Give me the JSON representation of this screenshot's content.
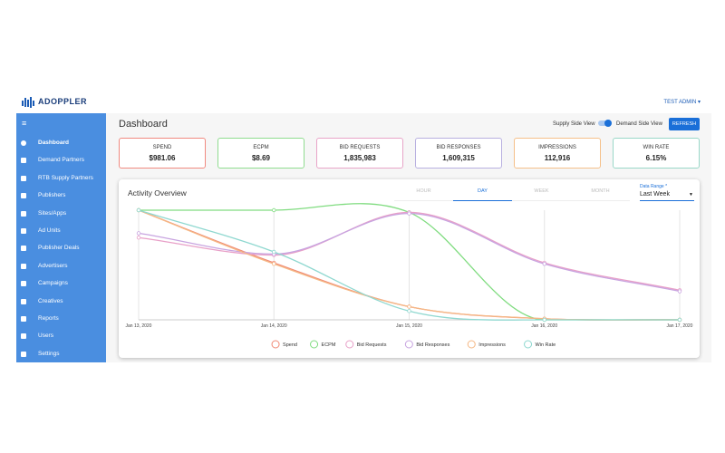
{
  "header": {
    "logo": "ADOPPLER",
    "user": "TEST ADMIN"
  },
  "sidebar": {
    "active": 0,
    "items": [
      "Dashboard",
      "Demand Partners",
      "RTB Supply Partners",
      "Publishers",
      "Sites/Apps",
      "Ad Units",
      "Publisher Deals",
      "Advertisers",
      "Campaigns",
      "Creatives",
      "Reports",
      "Users",
      "Settings"
    ]
  },
  "main": {
    "title": "Dashboard",
    "toggle_left": "Supply Side View",
    "toggle_right": "Demand Side View",
    "button": "REFRESH"
  },
  "kpis": [
    {
      "label": "SPEND",
      "value": "$981.06",
      "color": "#f08a80"
    },
    {
      "label": "ECPM",
      "value": "$8.69",
      "color": "#8fdc8f"
    },
    {
      "label": "BID REQUESTS",
      "value": "1,835,983",
      "color": "#e8a4c8"
    },
    {
      "label": "BID RESPONSES",
      "value": "1,609,315",
      "color": "#b8b0e0"
    },
    {
      "label": "IMPRESSIONS",
      "value": "112,916",
      "color": "#f5c08a"
    },
    {
      "label": "WIN RATE",
      "value": "6.15%",
      "color": "#9ad8c8"
    }
  ],
  "chart_card": {
    "title": "Activity Overview",
    "tabs": [
      "HOUR",
      "DAY",
      "WEEK",
      "MONTH"
    ],
    "active_tab": 1,
    "date_range": {
      "label": "Data Range *",
      "value": "Last Week"
    }
  },
  "chart_data": {
    "type": "line",
    "smooth": true,
    "grid": true,
    "categories": [
      "Jan 13, 2020",
      "Jan 14, 2020",
      "Jan 15, 2020",
      "Jan 16, 2020",
      "Jan 17, 2020"
    ],
    "ylim": [
      0,
      100
    ],
    "series": [
      {
        "name": "Spend",
        "color": "#f08a76",
        "values": [
          100,
          52,
          12,
          1,
          0
        ]
      },
      {
        "name": "ECPM",
        "color": "#80dc80",
        "values": [
          100,
          100,
          98,
          0,
          0
        ]
      },
      {
        "name": "Bid Requests",
        "color": "#e8a0c8",
        "values": [
          75,
          59,
          98,
          52,
          27
        ]
      },
      {
        "name": "Bid Responses",
        "color": "#c8a4e0",
        "values": [
          79,
          60,
          97,
          51,
          26
        ]
      },
      {
        "name": "Impressions",
        "color": "#f5b885",
        "values": [
          100,
          51,
          12,
          1,
          0
        ]
      },
      {
        "name": "Win Rate",
        "color": "#8fd8d0",
        "values": [
          100,
          62,
          8,
          0,
          0
        ]
      }
    ]
  }
}
